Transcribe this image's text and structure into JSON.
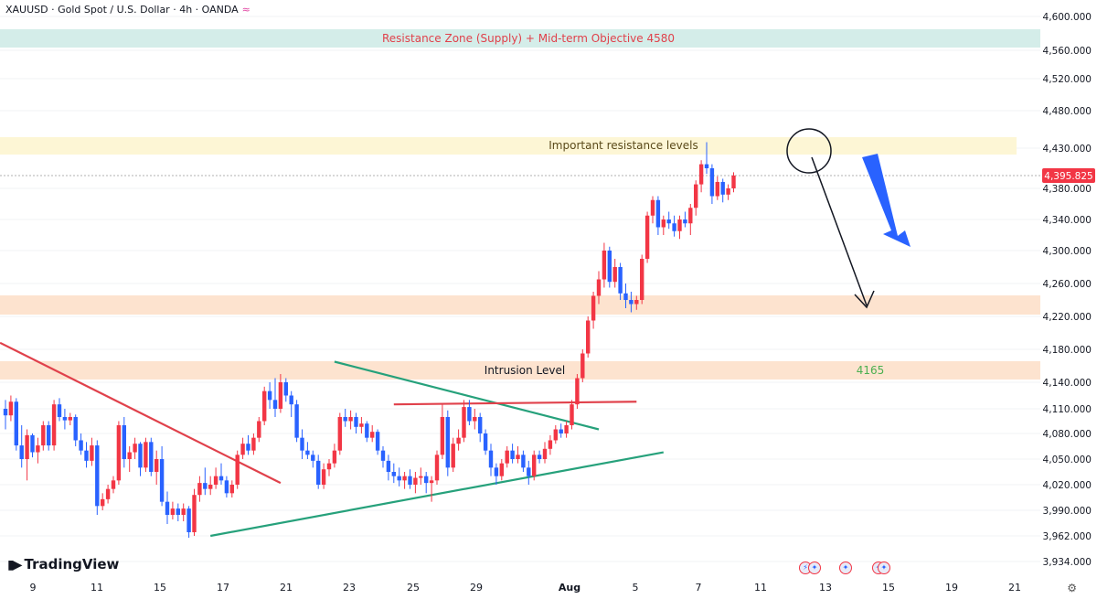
{
  "header": {
    "symbol_title": "XAUUSD · Gold Spot / U.S. Dollar · 4h · OANDA",
    "wave_icon": "wave-icon"
  },
  "price_axis": {
    "ticks": [
      "4,600.000",
      "4,560.000",
      "4,520.000",
      "4,480.000",
      "4,430.000",
      "4,380.000",
      "4,340.000",
      "4,300.000",
      "4,260.000",
      "4,220.000",
      "4,180.000",
      "4,140.000",
      "4,110.000",
      "4,080.000",
      "4,050.000",
      "4,020.000",
      "3,990.000",
      "3,962.000",
      "3,934.000"
    ],
    "last_price": "4,395.825"
  },
  "date_axis": {
    "ticks": [
      "9",
      "11",
      "15",
      "17",
      "21",
      "23",
      "25",
      "29",
      "Aug",
      "5",
      "7",
      "11",
      "13",
      "15",
      "19",
      "21"
    ]
  },
  "zones": {
    "supply": "Resistance Zone (Supply) + Mid-term Objective 4580",
    "important": "Important resistance levels",
    "intrusion": "Intrusion Level",
    "intrusion_value": "4165"
  },
  "branding": {
    "logo_text": "TradingView",
    "logo_icon": "tradingview-logo-icon"
  },
  "colors": {
    "up": "#f23645",
    "down": "#2962ff",
    "green_line": "#26a17b",
    "red_line": "#e0414b",
    "supply_zone": "#d4ede9",
    "important_zone": "#fdf6d5",
    "orange_zone": "#fde3cf",
    "arrow_blue": "#2962ff"
  },
  "chart_data": {
    "type": "candlestick",
    "instrument": "XAUUSD",
    "timeframe": "4h",
    "y_range": [
      3920,
      4620
    ],
    "last_price": 4395.825,
    "zones": [
      {
        "label": "Resistance Zone (Supply) + Mid-term Objective 4580",
        "from": 4560,
        "to": 4582
      },
      {
        "label": "Important resistance levels",
        "from": 4420,
        "to": 4440
      },
      {
        "label": "",
        "from": 4222,
        "to": 4244
      },
      {
        "label": "Intrusion Level",
        "from": 4143,
        "to": 4165
      }
    ],
    "candles": [
      {
        "o": 4110,
        "h": 4120,
        "l": 4085,
        "c": 4102
      },
      {
        "o": 4102,
        "h": 4125,
        "l": 4095,
        "c": 4118
      },
      {
        "o": 4118,
        "h": 4122,
        "l": 4060,
        "c": 4066
      },
      {
        "o": 4066,
        "h": 4090,
        "l": 4040,
        "c": 4050
      },
      {
        "o": 4050,
        "h": 4085,
        "l": 4025,
        "c": 4078
      },
      {
        "o": 4078,
        "h": 4080,
        "l": 4052,
        "c": 4058
      },
      {
        "o": 4058,
        "h": 4075,
        "l": 4045,
        "c": 4066
      },
      {
        "o": 4066,
        "h": 4095,
        "l": 4060,
        "c": 4090
      },
      {
        "o": 4090,
        "h": 4095,
        "l": 4060,
        "c": 4066
      },
      {
        "o": 4066,
        "h": 4120,
        "l": 4060,
        "c": 4115
      },
      {
        "o": 4115,
        "h": 4122,
        "l": 4095,
        "c": 4100
      },
      {
        "o": 4100,
        "h": 4110,
        "l": 4085,
        "c": 4096
      },
      {
        "o": 4096,
        "h": 4105,
        "l": 4090,
        "c": 4100
      },
      {
        "o": 4100,
        "h": 4103,
        "l": 4065,
        "c": 4072
      },
      {
        "o": 4072,
        "h": 4080,
        "l": 4055,
        "c": 4060
      },
      {
        "o": 4060,
        "h": 4070,
        "l": 4040,
        "c": 4048
      },
      {
        "o": 4048,
        "h": 4075,
        "l": 4042,
        "c": 4066
      },
      {
        "o": 4066,
        "h": 4072,
        "l": 3985,
        "c": 3995
      },
      {
        "o": 3995,
        "h": 4010,
        "l": 3990,
        "c": 4003
      },
      {
        "o": 4003,
        "h": 4020,
        "l": 3998,
        "c": 4015
      },
      {
        "o": 4015,
        "h": 4030,
        "l": 4010,
        "c": 4025
      },
      {
        "o": 4025,
        "h": 4095,
        "l": 4020,
        "c": 4090
      },
      {
        "o": 4090,
        "h": 4100,
        "l": 4040,
        "c": 4050
      },
      {
        "o": 4050,
        "h": 4065,
        "l": 4035,
        "c": 4058
      },
      {
        "o": 4058,
        "h": 4075,
        "l": 4050,
        "c": 4068
      },
      {
        "o": 4068,
        "h": 4070,
        "l": 4030,
        "c": 4040
      },
      {
        "o": 4040,
        "h": 4075,
        "l": 4035,
        "c": 4070
      },
      {
        "o": 4070,
        "h": 4075,
        "l": 4030,
        "c": 4035
      },
      {
        "o": 4035,
        "h": 4060,
        "l": 4020,
        "c": 4050
      },
      {
        "o": 4050,
        "h": 4065,
        "l": 3995,
        "c": 4000
      },
      {
        "o": 4000,
        "h": 4012,
        "l": 3975,
        "c": 3985
      },
      {
        "o": 3985,
        "h": 4000,
        "l": 3980,
        "c": 3992
      },
      {
        "o": 3992,
        "h": 3998,
        "l": 3978,
        "c": 3985
      },
      {
        "o": 3985,
        "h": 3998,
        "l": 3978,
        "c": 3992
      },
      {
        "o": 3992,
        "h": 3995,
        "l": 3960,
        "c": 3966
      },
      {
        "o": 3966,
        "h": 4015,
        "l": 3962,
        "c": 4008
      },
      {
        "o": 4008,
        "h": 4030,
        "l": 4000,
        "c": 4022
      },
      {
        "o": 4022,
        "h": 4040,
        "l": 4008,
        "c": 4015
      },
      {
        "o": 4015,
        "h": 4030,
        "l": 4008,
        "c": 4020
      },
      {
        "o": 4020,
        "h": 4040,
        "l": 4015,
        "c": 4030
      },
      {
        "o": 4030,
        "h": 4045,
        "l": 4020,
        "c": 4025
      },
      {
        "o": 4025,
        "h": 4030,
        "l": 4005,
        "c": 4010
      },
      {
        "o": 4010,
        "h": 4025,
        "l": 4005,
        "c": 4020
      },
      {
        "o": 4020,
        "h": 4060,
        "l": 4015,
        "c": 4055
      },
      {
        "o": 4055,
        "h": 4075,
        "l": 4050,
        "c": 4068
      },
      {
        "o": 4068,
        "h": 4078,
        "l": 4055,
        "c": 4060
      },
      {
        "o": 4060,
        "h": 4080,
        "l": 4055,
        "c": 4075
      },
      {
        "o": 4075,
        "h": 4100,
        "l": 4070,
        "c": 4095
      },
      {
        "o": 4095,
        "h": 4135,
        "l": 4090,
        "c": 4130
      },
      {
        "o": 4130,
        "h": 4140,
        "l": 4110,
        "c": 4120
      },
      {
        "o": 4120,
        "h": 4145,
        "l": 4100,
        "c": 4110
      },
      {
        "o": 4110,
        "h": 4150,
        "l": 4105,
        "c": 4140
      },
      {
        "o": 4140,
        "h": 4145,
        "l": 4118,
        "c": 4125
      },
      {
        "o": 4125,
        "h": 4130,
        "l": 4100,
        "c": 4115
      },
      {
        "o": 4115,
        "h": 4120,
        "l": 4070,
        "c": 4075
      },
      {
        "o": 4075,
        "h": 4085,
        "l": 4050,
        "c": 4060
      },
      {
        "o": 4060,
        "h": 4070,
        "l": 4050,
        "c": 4055
      },
      {
        "o": 4055,
        "h": 4060,
        "l": 4040,
        "c": 4048
      },
      {
        "o": 4048,
        "h": 4055,
        "l": 4015,
        "c": 4020
      },
      {
        "o": 4020,
        "h": 4045,
        "l": 4015,
        "c": 4038
      },
      {
        "o": 4038,
        "h": 4050,
        "l": 4030,
        "c": 4045
      },
      {
        "o": 4045,
        "h": 4068,
        "l": 4040,
        "c": 4060
      },
      {
        "o": 4060,
        "h": 4105,
        "l": 4055,
        "c": 4100
      },
      {
        "o": 4100,
        "h": 4110,
        "l": 4088,
        "c": 4095
      },
      {
        "o": 4095,
        "h": 4108,
        "l": 4085,
        "c": 4100
      },
      {
        "o": 4100,
        "h": 4105,
        "l": 4080,
        "c": 4088
      },
      {
        "o": 4088,
        "h": 4100,
        "l": 4080,
        "c": 4092
      },
      {
        "o": 4092,
        "h": 4095,
        "l": 4070,
        "c": 4075
      },
      {
        "o": 4075,
        "h": 4090,
        "l": 4070,
        "c": 4082
      },
      {
        "o": 4082,
        "h": 4085,
        "l": 4055,
        "c": 4060
      },
      {
        "o": 4060,
        "h": 4065,
        "l": 4040,
        "c": 4048
      },
      {
        "o": 4048,
        "h": 4055,
        "l": 4025,
        "c": 4035
      },
      {
        "o": 4035,
        "h": 4045,
        "l": 4022,
        "c": 4030
      },
      {
        "o": 4030,
        "h": 4040,
        "l": 4018,
        "c": 4025
      },
      {
        "o": 4025,
        "h": 4035,
        "l": 4015,
        "c": 4030
      },
      {
        "o": 4030,
        "h": 4038,
        "l": 4015,
        "c": 4020
      },
      {
        "o": 4020,
        "h": 4035,
        "l": 4010,
        "c": 4028
      },
      {
        "o": 4028,
        "h": 4040,
        "l": 4020,
        "c": 4030
      },
      {
        "o": 4030,
        "h": 4035,
        "l": 4010,
        "c": 4022
      },
      {
        "o": 4022,
        "h": 4030,
        "l": 4000,
        "c": 4025
      },
      {
        "o": 4025,
        "h": 4060,
        "l": 4020,
        "c": 4055
      },
      {
        "o": 4055,
        "h": 4115,
        "l": 4050,
        "c": 4100
      },
      {
        "o": 4100,
        "h": 4108,
        "l": 4030,
        "c": 4040
      },
      {
        "o": 4040,
        "h": 4075,
        "l": 4035,
        "c": 4068
      },
      {
        "o": 4068,
        "h": 4085,
        "l": 4060,
        "c": 4075
      },
      {
        "o": 4075,
        "h": 4120,
        "l": 4070,
        "c": 4112
      },
      {
        "o": 4112,
        "h": 4120,
        "l": 4090,
        "c": 4095
      },
      {
        "o": 4095,
        "h": 4110,
        "l": 4085,
        "c": 4100
      },
      {
        "o": 4100,
        "h": 4105,
        "l": 4070,
        "c": 4080
      },
      {
        "o": 4080,
        "h": 4085,
        "l": 4055,
        "c": 4060
      },
      {
        "o": 4060,
        "h": 4068,
        "l": 4030,
        "c": 4040
      },
      {
        "o": 4040,
        "h": 4045,
        "l": 4020,
        "c": 4030
      },
      {
        "o": 4030,
        "h": 4050,
        "l": 4025,
        "c": 4045
      },
      {
        "o": 4045,
        "h": 4065,
        "l": 4040,
        "c": 4060
      },
      {
        "o": 4060,
        "h": 4068,
        "l": 4045,
        "c": 4050
      },
      {
        "o": 4050,
        "h": 4065,
        "l": 4045,
        "c": 4055
      },
      {
        "o": 4055,
        "h": 4060,
        "l": 4035,
        "c": 4040
      },
      {
        "o": 4040,
        "h": 4048,
        "l": 4020,
        "c": 4030
      },
      {
        "o": 4030,
        "h": 4060,
        "l": 4025,
        "c": 4055
      },
      {
        "o": 4055,
        "h": 4060,
        "l": 4045,
        "c": 4050
      },
      {
        "o": 4050,
        "h": 4070,
        "l": 4045,
        "c": 4062
      },
      {
        "o": 4062,
        "h": 4078,
        "l": 4055,
        "c": 4072
      },
      {
        "o": 4072,
        "h": 4090,
        "l": 4068,
        "c": 4085
      },
      {
        "o": 4085,
        "h": 4092,
        "l": 4075,
        "c": 4080
      },
      {
        "o": 4080,
        "h": 4095,
        "l": 4075,
        "c": 4090
      },
      {
        "o": 4090,
        "h": 4120,
        "l": 4085,
        "c": 4115
      },
      {
        "o": 4115,
        "h": 4150,
        "l": 4110,
        "c": 4145
      },
      {
        "o": 4145,
        "h": 4180,
        "l": 4140,
        "c": 4175
      },
      {
        "o": 4175,
        "h": 4220,
        "l": 4170,
        "c": 4215
      },
      {
        "o": 4215,
        "h": 4250,
        "l": 4205,
        "c": 4245
      },
      {
        "o": 4245,
        "h": 4275,
        "l": 4235,
        "c": 4265
      },
      {
        "o": 4265,
        "h": 4310,
        "l": 4255,
        "c": 4300
      },
      {
        "o": 4300,
        "h": 4305,
        "l": 4255,
        "c": 4262
      },
      {
        "o": 4262,
        "h": 4290,
        "l": 4255,
        "c": 4280
      },
      {
        "o": 4280,
        "h": 4285,
        "l": 4240,
        "c": 4248
      },
      {
        "o": 4248,
        "h": 4260,
        "l": 4230,
        "c": 4240
      },
      {
        "o": 4240,
        "h": 4250,
        "l": 4225,
        "c": 4235
      },
      {
        "o": 4235,
        "h": 4245,
        "l": 4228,
        "c": 4240
      },
      {
        "o": 4240,
        "h": 4295,
        "l": 4235,
        "c": 4290
      },
      {
        "o": 4290,
        "h": 4350,
        "l": 4285,
        "c": 4345
      },
      {
        "o": 4345,
        "h": 4370,
        "l": 4335,
        "c": 4365
      },
      {
        "o": 4365,
        "h": 4370,
        "l": 4320,
        "c": 4330
      },
      {
        "o": 4330,
        "h": 4345,
        "l": 4320,
        "c": 4340
      },
      {
        "o": 4340,
        "h": 4350,
        "l": 4328,
        "c": 4335
      },
      {
        "o": 4335,
        "h": 4345,
        "l": 4318,
        "c": 4325
      },
      {
        "o": 4325,
        "h": 4345,
        "l": 4315,
        "c": 4340
      },
      {
        "o": 4340,
        "h": 4350,
        "l": 4330,
        "c": 4335
      },
      {
        "o": 4335,
        "h": 4360,
        "l": 4320,
        "c": 4355
      },
      {
        "o": 4355,
        "h": 4390,
        "l": 4345,
        "c": 4385
      },
      {
        "o": 4385,
        "h": 4415,
        "l": 4375,
        "c": 4410
      },
      {
        "o": 4410,
        "h": 4438,
        "l": 4398,
        "c": 4405
      },
      {
        "o": 4405,
        "h": 4410,
        "l": 4360,
        "c": 4370
      },
      {
        "o": 4370,
        "h": 4395,
        "l": 4365,
        "c": 4388
      },
      {
        "o": 4388,
        "h": 4392,
        "l": 4362,
        "c": 4372
      },
      {
        "o": 4372,
        "h": 4385,
        "l": 4365,
        "c": 4380
      },
      {
        "o": 4380,
        "h": 4400,
        "l": 4375,
        "c": 4396
      }
    ],
    "trendlines": [
      {
        "name": "",
        "color": "red",
        "from": {
          "candle": -1,
          "price": 4188
        },
        "to": {
          "candle": 51,
          "price": 4022
        }
      },
      {
        "name": "",
        "color": "green",
        "from": {
          "candle": 61,
          "price": 4165
        },
        "to": {
          "candle": 110,
          "price": 4085
        }
      },
      {
        "name": "",
        "color": "green",
        "from": {
          "candle": 38,
          "price": 3962
        },
        "to": {
          "candle": 122,
          "price": 4058
        }
      },
      {
        "name": "",
        "color": "red",
        "from": {
          "candle": 72,
          "price": 4115
        },
        "to": {
          "candle": 117,
          "price": 4118
        }
      }
    ],
    "projection_arrow": {
      "from": 4430,
      "to": 4230
    },
    "title": "",
    "xlabel": "",
    "ylabel": ""
  }
}
